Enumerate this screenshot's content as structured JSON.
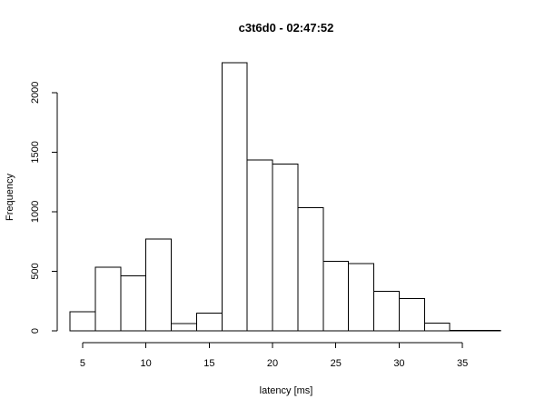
{
  "chart_data": {
    "type": "bar",
    "title": "c3t6d0 - 02:47:52",
    "xlabel": "latency [ms]",
    "ylabel": "Frequency",
    "bins": [
      {
        "from": 4,
        "to": 6,
        "count": 160
      },
      {
        "from": 6,
        "to": 8,
        "count": 535
      },
      {
        "from": 8,
        "to": 10,
        "count": 460
      },
      {
        "from": 10,
        "to": 12,
        "count": 770
      },
      {
        "from": 12,
        "to": 14,
        "count": 60
      },
      {
        "from": 14,
        "to": 16,
        "count": 150
      },
      {
        "from": 16,
        "to": 18,
        "count": 2250
      },
      {
        "from": 18,
        "to": 20,
        "count": 1435
      },
      {
        "from": 20,
        "to": 22,
        "count": 1400
      },
      {
        "from": 22,
        "to": 24,
        "count": 1035
      },
      {
        "from": 24,
        "to": 26,
        "count": 585
      },
      {
        "from": 26,
        "to": 28,
        "count": 565
      },
      {
        "from": 28,
        "to": 30,
        "count": 330
      },
      {
        "from": 30,
        "to": 32,
        "count": 270
      },
      {
        "from": 32,
        "to": 34,
        "count": 65
      },
      {
        "from": 34,
        "to": 36,
        "count": 5
      },
      {
        "from": 36,
        "to": 38,
        "count": 3
      }
    ],
    "xticks": [
      5,
      10,
      15,
      20,
      25,
      30,
      35
    ],
    "xtick_labels": [
      "5",
      "10",
      "15",
      "20",
      "25",
      "30",
      "35"
    ],
    "yticks": [
      0,
      500,
      1000,
      1500,
      2000
    ],
    "ytick_labels": [
      "0",
      "500",
      "1000",
      "1500",
      "2000"
    ],
    "xlim": [
      4,
      38
    ],
    "ylim": [
      0,
      2250
    ],
    "grid": false,
    "legend": "none",
    "colors": {
      "bar_fill": "#ffffff",
      "bar_stroke": "#000000"
    }
  }
}
